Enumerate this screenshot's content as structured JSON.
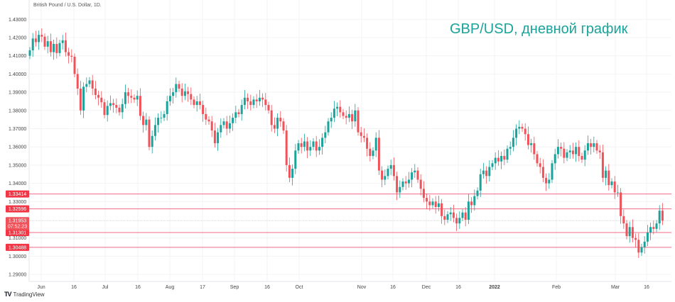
{
  "header": {
    "symbol": "British Pound / U.S. Dollar, 1D.",
    "title": "GBP/USD, дневной график"
  },
  "footer": {
    "brand": "TradingView"
  },
  "colors": {
    "up": "#1aa39a",
    "down": "#f0525a",
    "level_line": "#f06b86",
    "label_bg": "#f23645",
    "title": "#1aa39a"
  },
  "chart_data": {
    "type": "candlestick",
    "title": "British Pound / U.S. Dollar, 1D.",
    "ylim": [
      1.285,
      1.435
    ],
    "y_ticks": [
      "1.43000",
      "1.42000",
      "1.41000",
      "1.40000",
      "1.39000",
      "1.38000",
      "1.37000",
      "1.36000",
      "1.35000",
      "1.34000",
      "1.33000",
      "1.31000",
      "1.30000",
      "1.29000"
    ],
    "x_ticks": [
      {
        "label": "Jun",
        "bold": false
      },
      {
        "label": "16",
        "bold": false
      },
      {
        "label": "Jul",
        "bold": false
      },
      {
        "label": "16",
        "bold": false
      },
      {
        "label": "Aug",
        "bold": false
      },
      {
        "label": "17",
        "bold": false
      },
      {
        "label": "Sep",
        "bold": false
      },
      {
        "label": "16",
        "bold": false
      },
      {
        "label": "Oct",
        "bold": false
      },
      {
        "label": "Nov",
        "bold": false
      },
      {
        "label": "16",
        "bold": false
      },
      {
        "label": "Dec",
        "bold": false
      },
      {
        "label": "16",
        "bold": false
      },
      {
        "label": "2022",
        "bold": true
      },
      {
        "label": "Feb",
        "bold": false
      },
      {
        "label": "Mar",
        "bold": false
      },
      {
        "label": "16",
        "bold": false
      }
    ],
    "grid": true,
    "first_open": 1.41,
    "close": [
      1.413,
      1.4195,
      1.4175,
      1.4215,
      1.4205,
      1.415,
      1.418,
      1.412,
      1.4165,
      1.4115,
      1.417,
      1.4185,
      1.412,
      1.41,
      1.4095,
      1.4,
      1.392,
      1.38,
      1.393,
      1.3945,
      1.3965,
      1.392,
      1.3885,
      1.387,
      1.3845,
      1.3775,
      1.3825,
      1.384,
      1.383,
      1.3815,
      1.379,
      1.3835,
      1.39,
      1.388,
      1.387,
      1.386,
      1.388,
      1.377,
      1.372,
      1.375,
      1.36,
      1.366,
      1.372,
      1.376,
      1.376,
      1.378,
      1.385,
      1.388,
      1.39,
      1.3945,
      1.392,
      1.388,
      1.3905,
      1.389,
      1.386,
      1.383,
      1.385,
      1.383,
      1.378,
      1.375,
      1.374,
      1.369,
      1.362,
      1.368,
      1.372,
      1.374,
      1.37,
      1.373,
      1.376,
      1.379,
      1.378,
      1.383,
      1.387,
      1.385,
      1.383,
      1.386,
      1.385,
      1.387,
      1.386,
      1.383,
      1.38,
      1.372,
      1.37,
      1.376,
      1.374,
      1.369,
      1.35,
      1.343,
      1.348,
      1.358,
      1.362,
      1.36,
      1.363,
      1.358,
      1.36,
      1.363,
      1.358,
      1.36,
      1.365,
      1.368,
      1.374,
      1.376,
      1.381,
      1.382,
      1.379,
      1.377,
      1.376,
      1.378,
      1.374,
      1.38,
      1.368,
      1.366,
      1.365,
      1.359,
      1.355,
      1.358,
      1.365,
      1.347,
      1.342,
      1.344,
      1.348,
      1.35,
      1.344,
      1.335,
      1.338,
      1.341,
      1.34,
      1.342,
      1.346,
      1.347,
      1.342,
      1.337,
      1.332,
      1.33,
      1.328,
      1.33,
      1.327,
      1.329,
      1.322,
      1.32,
      1.323,
      1.324,
      1.321,
      1.318,
      1.321,
      1.324,
      1.32,
      1.33,
      1.328,
      1.333,
      1.336,
      1.345,
      1.347,
      1.344,
      1.349,
      1.351,
      1.354,
      1.352,
      1.355,
      1.353,
      1.359,
      1.36,
      1.365,
      1.37,
      1.371,
      1.37,
      1.367,
      1.361,
      1.362,
      1.356,
      1.351,
      1.349,
      1.343,
      1.34,
      1.342,
      1.351,
      1.356,
      1.36,
      1.359,
      1.354,
      1.357,
      1.358,
      1.356,
      1.36,
      1.355,
      1.353,
      1.358,
      1.362,
      1.36,
      1.362,
      1.358,
      1.357,
      1.343,
      1.347,
      1.339,
      1.341,
      1.335,
      1.335,
      1.322,
      1.318,
      1.311,
      1.316,
      1.31,
      1.309,
      1.302,
      1.305,
      1.308,
      1.313,
      1.316,
      1.315,
      1.318,
      1.325,
      1.3195
    ],
    "levels": [
      "1.33414",
      "1.32596",
      "1.31301",
      "1.30488"
    ],
    "last_price": {
      "value": "1.31953",
      "countdown": "07:52:23"
    }
  }
}
